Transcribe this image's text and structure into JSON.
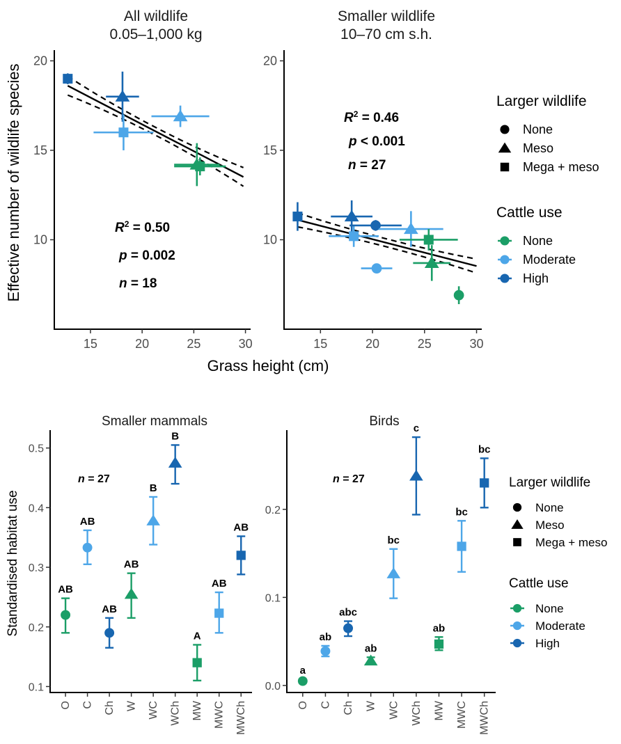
{
  "colors": {
    "None": "#1b9e67",
    "Moderate": "#4da6e8",
    "High": "#1866b0",
    "axis": "#000000",
    "fit": "#000000"
  },
  "legend": {
    "wildlife_title": "Larger wildlife",
    "wildlife_items": [
      {
        "label": "None",
        "shape": "circle"
      },
      {
        "label": "Meso",
        "shape": "triangle"
      },
      {
        "label": "Mega + meso",
        "shape": "square"
      }
    ],
    "cattle_title": "Cattle use",
    "cattle_items": [
      {
        "label": "None",
        "color": "None"
      },
      {
        "label": "Moderate",
        "color": "Moderate"
      },
      {
        "label": "High",
        "color": "High"
      }
    ]
  },
  "chart_data": [
    {
      "type": "scatter",
      "title": "All wildlife\n0.05–1,000 kg",
      "xlabel": "Grass height (cm)",
      "ylabel": "Effective number of wildlife species",
      "xlim": [
        11.5,
        30.5
      ],
      "ylim": [
        5,
        20.6
      ],
      "xticks": [
        15,
        20,
        25,
        30
      ],
      "yticks": [
        10,
        15,
        20
      ],
      "stats": {
        "r2_value": "= 0.50",
        "p_value": "= 0.002",
        "n_value": "= 18"
      },
      "fit": {
        "intercept": 22.45,
        "slope": -0.3,
        "x": [
          12.8,
          29.8
        ]
      },
      "points": [
        {
          "x": 12.8,
          "y": 19.0,
          "xerr": 0.2,
          "yerr": 0.3,
          "shape": "square",
          "cattle": "High"
        },
        {
          "x": 18.1,
          "y": 18.0,
          "xerr": 1.6,
          "yerr": 1.4,
          "shape": "triangle",
          "cattle": "High"
        },
        {
          "x": 18.2,
          "y": 16.0,
          "xerr": 2.9,
          "yerr": 1.0,
          "shape": "square",
          "cattle": "Moderate"
        },
        {
          "x": 23.7,
          "y": 16.9,
          "xerr": 2.8,
          "yerr": 0.6,
          "shape": "triangle",
          "cattle": "Moderate"
        },
        {
          "x": 25.3,
          "y": 14.2,
          "xerr": 2.2,
          "yerr": 1.2,
          "shape": "triangle",
          "cattle": "None"
        },
        {
          "x": 25.6,
          "y": 14.1,
          "xerr": 2.5,
          "yerr": 0.5,
          "shape": "square",
          "cattle": "None"
        }
      ]
    },
    {
      "type": "scatter",
      "title": "Smaller wildlife\n10–70 cm s.h.",
      "xlabel": "",
      "ylabel": "",
      "xlim": [
        11.5,
        30.5
      ],
      "ylim": [
        5,
        20.6
      ],
      "xticks": [
        15,
        20,
        25,
        30
      ],
      "yticks": [
        10,
        15,
        20
      ],
      "stats": {
        "r2_value": "= 0.46",
        "p_value": "< 0.001",
        "n_value": "= 27"
      },
      "fit": {
        "intercept": 13.03,
        "slope": -0.15,
        "x": [
          12.8,
          30.0
        ]
      },
      "points": [
        {
          "x": 12.8,
          "y": 11.3,
          "xerr": 0.3,
          "yerr": 0.8,
          "shape": "square",
          "cattle": "High"
        },
        {
          "x": 18.0,
          "y": 11.3,
          "xerr": 2.0,
          "yerr": 0.9,
          "shape": "triangle",
          "cattle": "High"
        },
        {
          "x": 18.2,
          "y": 10.2,
          "xerr": 2.4,
          "yerr": 0.6,
          "shape": "square",
          "cattle": "Moderate"
        },
        {
          "x": 20.3,
          "y": 10.8,
          "xerr": 2.5,
          "yerr": 0.3,
          "shape": "circle",
          "cattle": "High"
        },
        {
          "x": 20.4,
          "y": 8.4,
          "xerr": 1.5,
          "yerr": 0.2,
          "shape": "circle",
          "cattle": "Moderate"
        },
        {
          "x": 23.7,
          "y": 10.6,
          "xerr": 3.1,
          "yerr": 1.0,
          "shape": "triangle",
          "cattle": "Moderate"
        },
        {
          "x": 25.4,
          "y": 10.0,
          "xerr": 2.8,
          "yerr": 0.6,
          "shape": "square",
          "cattle": "None"
        },
        {
          "x": 25.7,
          "y": 8.7,
          "xerr": 1.8,
          "yerr": 1.0,
          "shape": "triangle",
          "cattle": "None"
        },
        {
          "x": 28.3,
          "y": 6.9,
          "xerr": 0.2,
          "yerr": 0.5,
          "shape": "circle",
          "cattle": "None"
        }
      ]
    },
    {
      "type": "scatter",
      "title": "Smaller mammals",
      "xlabel": "",
      "ylabel": "Standardised habitat use",
      "ylim": [
        0.09,
        0.53
      ],
      "yticks": [
        0.1,
        0.2,
        0.3,
        0.4,
        0.5
      ],
      "ytick_labels": [
        "0.1",
        "0.2",
        "0.3",
        "0.4",
        "0.5"
      ],
      "categories": [
        "O",
        "C",
        "Ch",
        "W",
        "WC",
        "WCh",
        "MW",
        "MWC",
        "MWCh"
      ],
      "stats": {
        "n_value": "= 27"
      },
      "points": [
        {
          "cat": "O",
          "y": 0.22,
          "lo": 0.19,
          "hi": 0.248,
          "shape": "circle",
          "cattle": "None",
          "letter": "AB"
        },
        {
          "cat": "C",
          "y": 0.333,
          "lo": 0.305,
          "hi": 0.362,
          "shape": "circle",
          "cattle": "Moderate",
          "letter": "AB"
        },
        {
          "cat": "Ch",
          "y": 0.19,
          "lo": 0.165,
          "hi": 0.215,
          "shape": "circle",
          "cattle": "High",
          "letter": "AB"
        },
        {
          "cat": "W",
          "y": 0.255,
          "lo": 0.215,
          "hi": 0.29,
          "shape": "triangle",
          "cattle": "None",
          "letter": "AB"
        },
        {
          "cat": "WC",
          "y": 0.378,
          "lo": 0.338,
          "hi": 0.418,
          "shape": "triangle",
          "cattle": "Moderate",
          "letter": "B"
        },
        {
          "cat": "WCh",
          "y": 0.475,
          "lo": 0.44,
          "hi": 0.505,
          "shape": "triangle",
          "cattle": "High",
          "letter": "B"
        },
        {
          "cat": "MW",
          "y": 0.14,
          "lo": 0.11,
          "hi": 0.17,
          "shape": "square",
          "cattle": "None",
          "letter": "A"
        },
        {
          "cat": "MWC",
          "y": 0.223,
          "lo": 0.19,
          "hi": 0.258,
          "shape": "square",
          "cattle": "Moderate",
          "letter": "AB"
        },
        {
          "cat": "MWCh",
          "y": 0.32,
          "lo": 0.288,
          "hi": 0.352,
          "shape": "square",
          "cattle": "High",
          "letter": "AB"
        }
      ]
    },
    {
      "type": "scatter",
      "title": "Birds",
      "xlabel": "",
      "ylabel": "",
      "ylim": [
        -0.008,
        0.29
      ],
      "yticks": [
        0.0,
        0.1,
        0.2
      ],
      "ytick_labels": [
        "0.0",
        "0.1",
        "0.2"
      ],
      "categories": [
        "O",
        "C",
        "Ch",
        "W",
        "WC",
        "WCh",
        "MW",
        "MWC",
        "MWCh"
      ],
      "stats": {
        "n_value": "= 27"
      },
      "points": [
        {
          "cat": "O",
          "y": 0.005,
          "lo": 0.003,
          "hi": 0.007,
          "shape": "circle",
          "cattle": "None",
          "letter": "a"
        },
        {
          "cat": "C",
          "y": 0.039,
          "lo": 0.033,
          "hi": 0.045,
          "shape": "circle",
          "cattle": "Moderate",
          "letter": "ab"
        },
        {
          "cat": "Ch",
          "y": 0.065,
          "lo": 0.056,
          "hi": 0.073,
          "shape": "circle",
          "cattle": "High",
          "letter": "abc"
        },
        {
          "cat": "W",
          "y": 0.028,
          "lo": 0.024,
          "hi": 0.032,
          "shape": "triangle",
          "cattle": "None",
          "letter": "ab"
        },
        {
          "cat": "WC",
          "y": 0.127,
          "lo": 0.099,
          "hi": 0.155,
          "shape": "triangle",
          "cattle": "Moderate",
          "letter": "bc"
        },
        {
          "cat": "WCh",
          "y": 0.238,
          "lo": 0.194,
          "hi": 0.282,
          "shape": "triangle",
          "cattle": "High",
          "letter": "c"
        },
        {
          "cat": "MW",
          "y": 0.047,
          "lo": 0.04,
          "hi": 0.055,
          "shape": "square",
          "cattle": "None",
          "letter": "ab"
        },
        {
          "cat": "MWC",
          "y": 0.158,
          "lo": 0.129,
          "hi": 0.187,
          "shape": "square",
          "cattle": "Moderate",
          "letter": "bc"
        },
        {
          "cat": "MWCh",
          "y": 0.23,
          "lo": 0.202,
          "hi": 0.258,
          "shape": "square",
          "cattle": "High",
          "letter": "bc"
        }
      ]
    }
  ]
}
